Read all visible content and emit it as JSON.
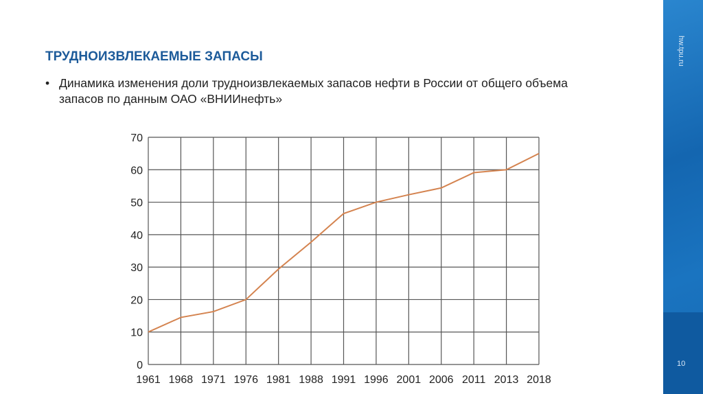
{
  "slide": {
    "title": "ТРУДНОИЗВЛЕКАЕМЫЕ ЗАПАСЫ",
    "bullet": "Динамика изменения доли трудноизвлекаемых запасов нефти в России от общего объема запасов по данным ОАО «ВНИИнефть»",
    "site": "hw.tpu.ru",
    "page_number": "10"
  },
  "chart_data": {
    "type": "line",
    "categories": [
      "1961",
      "1968",
      "1971",
      "1976",
      "1981",
      "1988",
      "1991",
      "1996",
      "2001",
      "2006",
      "2011",
      "2013",
      "2018"
    ],
    "values": [
      10,
      14.5,
      16.3,
      20,
      29.4,
      37.7,
      46.5,
      50,
      52.3,
      54.4,
      59.1,
      60,
      65
    ],
    "ylim": [
      0,
      70
    ],
    "yticks": [
      "0",
      "10",
      "20",
      "30",
      "40",
      "50",
      "60",
      "70"
    ],
    "grid": true,
    "line_color": "#d4834f",
    "grid_color": "#555555"
  }
}
